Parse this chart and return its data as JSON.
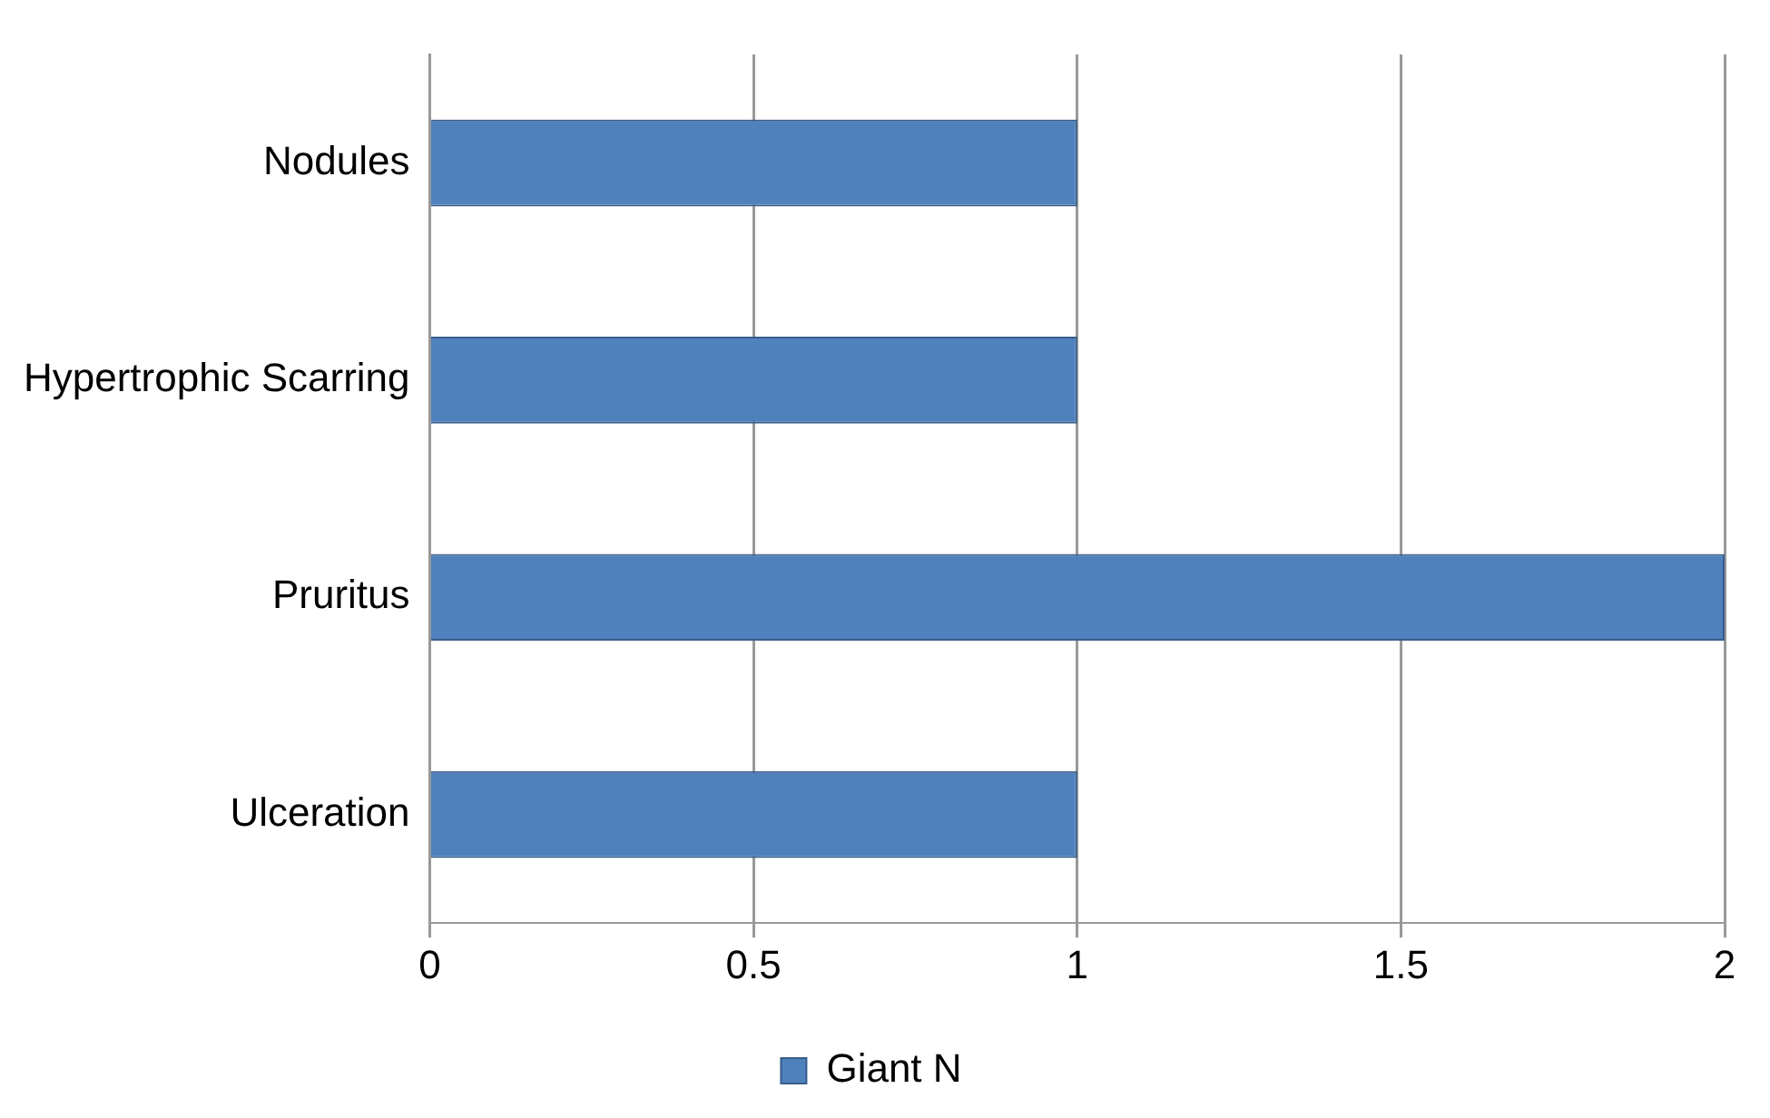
{
  "chart_data": {
    "type": "bar",
    "orientation": "horizontal",
    "categories": [
      "Nodules",
      "Hypertrophic Scarring",
      "Pruritus",
      "Ulceration"
    ],
    "series": [
      {
        "name": "Giant N",
        "color": "#4f81bd",
        "values": [
          1,
          1,
          2,
          1
        ]
      }
    ],
    "xlim": [
      0,
      2
    ],
    "xticks": [
      0,
      0.5,
      1,
      1.5,
      2
    ],
    "grid": "x",
    "legend": "bottom"
  }
}
